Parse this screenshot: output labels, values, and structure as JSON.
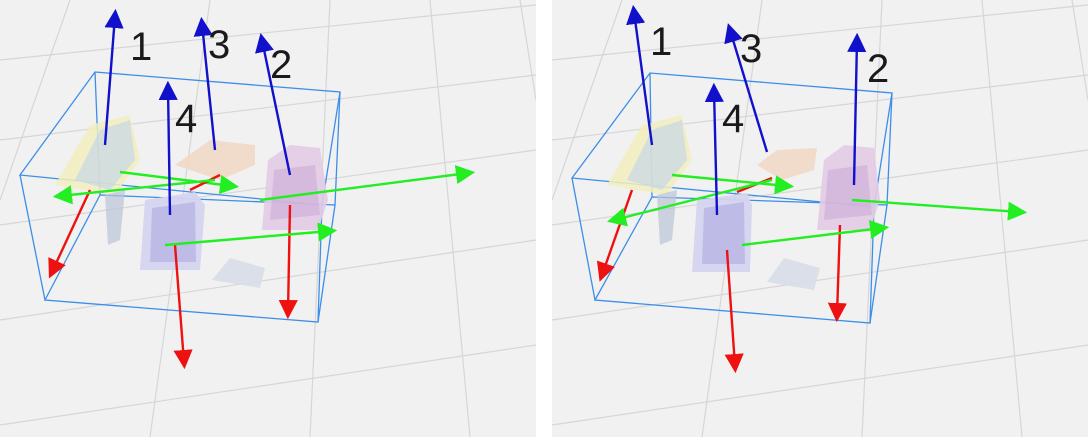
{
  "panels": [
    {
      "labels": [
        "1",
        "2",
        "3",
        "4"
      ]
    },
    {
      "labels": [
        "1",
        "2",
        "3",
        "4"
      ]
    }
  ],
  "colors": {
    "background": "#f1f1f1",
    "grid": "#d6d6d6",
    "bounding_box": "#3d8ee8",
    "axis_x": "#ee1111",
    "axis_y": "#22ee22",
    "axis_z": "#1111cc",
    "separator": "#ffffff"
  }
}
